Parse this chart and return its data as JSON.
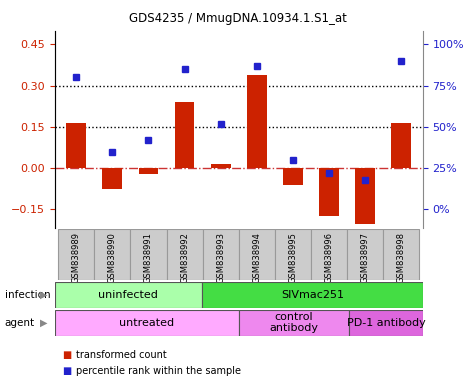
{
  "title": "GDS4235 / MmugDNA.10934.1.S1_at",
  "samples": [
    "GSM838989",
    "GSM838990",
    "GSM838991",
    "GSM838992",
    "GSM838993",
    "GSM838994",
    "GSM838995",
    "GSM838996",
    "GSM838997",
    "GSM838998"
  ],
  "bar_values": [
    0.165,
    -0.075,
    -0.02,
    0.24,
    0.015,
    0.34,
    -0.06,
    -0.175,
    -0.205,
    0.165
  ],
  "dot_values": [
    80,
    35,
    42,
    85,
    52,
    87,
    30,
    22,
    18,
    90
  ],
  "ylim_left": [
    -0.22,
    0.5
  ],
  "ylim_right": [
    -14.67,
    130
  ],
  "yticks_left": [
    -0.15,
    0,
    0.15,
    0.3,
    0.45
  ],
  "yticks_right": [
    0,
    25,
    50,
    75,
    100
  ],
  "bar_color": "#cc2200",
  "dot_color": "#2222cc",
  "zero_line_color": "#cc3333",
  "infection_labels": [
    {
      "text": "uninfected",
      "start": 0,
      "end": 3,
      "color": "#aaffaa"
    },
    {
      "text": "SIVmac251",
      "start": 4,
      "end": 9,
      "color": "#44dd44"
    }
  ],
  "agent_labels": [
    {
      "text": "untreated",
      "start": 0,
      "end": 4,
      "color": "#ffaaff"
    },
    {
      "text": "control\nantibody",
      "start": 5,
      "end": 7,
      "color": "#ee88ee"
    },
    {
      "text": "PD-1 antibody",
      "start": 8,
      "end": 9,
      "color": "#dd66dd"
    }
  ],
  "legend_bar_label": "transformed count",
  "legend_dot_label": "percentile rank within the sample",
  "infection_row_label": "infection",
  "agent_row_label": "agent"
}
